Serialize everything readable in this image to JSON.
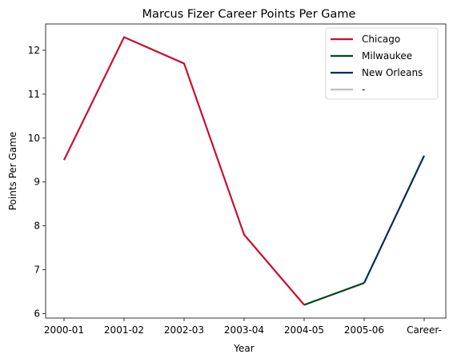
{
  "chart_data": {
    "type": "line",
    "title": "Marcus Fizer Career Points Per Game",
    "xlabel": "Year",
    "ylabel": "Points Per Game",
    "categories": [
      "2000-01",
      "2001-02",
      "2002-03",
      "2003-04",
      "2004-05",
      "2005-06",
      "Career-"
    ],
    "yticks": [
      6,
      7,
      8,
      9,
      10,
      11,
      12
    ],
    "ylim": [
      5.9,
      12.6
    ],
    "grid": false,
    "legend_placement": "top-right",
    "series": [
      {
        "name": "Chicago",
        "color": "#c8102e",
        "x": [
          "2000-01",
          "2001-02",
          "2002-03",
          "2003-04",
          "2004-05"
        ],
        "values": [
          9.5,
          12.3,
          11.7,
          7.8,
          6.2
        ]
      },
      {
        "name": "Milwaukee",
        "color": "#00471b",
        "x": [
          "2004-05",
          "2005-06"
        ],
        "values": [
          6.2,
          6.7
        ]
      },
      {
        "name": "New Orleans",
        "color": "#002b5c",
        "x": [
          "2005-06",
          "Career-"
        ],
        "values": [
          6.7,
          9.6
        ]
      },
      {
        "name": "-",
        "color": "#c0c0c0",
        "x": [],
        "values": []
      }
    ]
  }
}
